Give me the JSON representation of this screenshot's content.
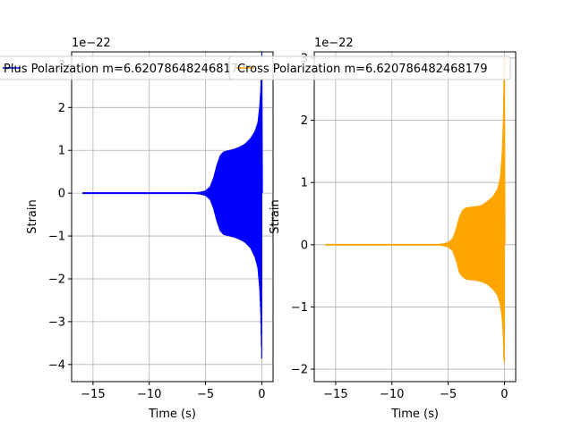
{
  "chart_data": [
    {
      "type": "line",
      "xlabel": "Time (s)",
      "ylabel": "Strain",
      "offset_text": "1e−22",
      "xlim": [
        -16.9,
        1.0
      ],
      "ylim": [
        -4.4,
        3.3
      ],
      "xticks": [
        -15,
        -10,
        -5,
        0
      ],
      "xtick_labels": [
        "−15",
        "−10",
        "−5",
        "0"
      ],
      "yticks": [
        -4,
        -3,
        -2,
        -1,
        0,
        1,
        2,
        3
      ],
      "ytick_labels": [
        "−4",
        "−3",
        "−2",
        "−1",
        "0",
        "1",
        "2",
        "3"
      ],
      "grid": true,
      "legend_position": "top-left",
      "series": [
        {
          "name": "Plus Polarization m=6.620786482468179",
          "color": "#0000ff",
          "envelope": {
            "t": [
              -15.9,
              -6.0,
              -5.5,
              -5.0,
              -4.6,
              -4.3,
              -4.0,
              -3.7,
              -3.4,
              -3.0,
              -2.5,
              -2.0,
              -1.5,
              -1.0,
              -0.6,
              -0.35,
              -0.2,
              -0.1,
              -0.05,
              0.0
            ],
            "upper": [
              0.02,
              0.02,
              0.03,
              0.06,
              0.15,
              0.35,
              0.65,
              0.88,
              0.97,
              1.0,
              1.03,
              1.08,
              1.15,
              1.28,
              1.45,
              1.65,
              2.0,
              2.4,
              2.9,
              3.3
            ],
            "lower": [
              -0.02,
              -0.02,
              -0.03,
              -0.06,
              -0.15,
              -0.35,
              -0.65,
              -0.88,
              -0.97,
              -1.0,
              -1.03,
              -1.08,
              -1.15,
              -1.28,
              -1.5,
              -1.75,
              -2.2,
              -2.8,
              -3.4,
              -4.0
            ]
          }
        },
        {
          "name": "Cross Polarization m=6.620786482468179",
          "color": "#ffa500",
          "envelope": {
            "t": [
              -15.9,
              -6.0,
              -5.5,
              -5.0,
              -4.6,
              -4.3,
              -4.0,
              -3.7,
              -3.4,
              -3.0,
              -2.5,
              -2.0,
              -1.5,
              -1.0,
              -0.6,
              -0.35,
              -0.2,
              -0.1,
              -0.05,
              0.0
            ],
            "upper": [
              0.01,
              0.01,
              0.02,
              0.04,
              0.1,
              0.25,
              0.45,
              0.56,
              0.6,
              0.61,
              0.62,
              0.64,
              0.7,
              0.78,
              0.9,
              1.1,
              1.5,
              2.0,
              2.6,
              3.0
            ],
            "lower": [
              -0.01,
              -0.01,
              -0.02,
              -0.04,
              -0.1,
              -0.25,
              -0.45,
              -0.52,
              -0.56,
              -0.57,
              -0.58,
              -0.6,
              -0.64,
              -0.72,
              -0.82,
              -0.98,
              -1.2,
              -1.5,
              -1.85,
              -1.9
            ]
          }
        }
      ]
    },
    {
      "type": "line",
      "xlabel": "Time (s)",
      "ylabel": "Strain",
      "offset_text": "1e−22",
      "xlim": [
        -16.9,
        1.0
      ],
      "ylim": [
        -2.2,
        3.1
      ],
      "xticks": [
        -15,
        -10,
        -5,
        0
      ],
      "xtick_labels": [
        "−15",
        "−10",
        "−5",
        "0"
      ],
      "yticks": [
        -2,
        -1,
        0,
        1,
        2,
        3
      ],
      "ytick_labels": [
        "−2",
        "−1",
        "0",
        "1",
        "2",
        "3"
      ],
      "grid": true,
      "legend_position": "top-left",
      "series": [
        {
          "name": "Cross Polarization m=6.620786482468179",
          "color": "#ffa500",
          "envelope": {
            "t": [
              -15.9,
              -6.0,
              -5.5,
              -5.0,
              -4.6,
              -4.3,
              -4.0,
              -3.7,
              -3.4,
              -3.0,
              -2.5,
              -2.0,
              -1.5,
              -1.0,
              -0.6,
              -0.35,
              -0.2,
              -0.1,
              -0.05,
              0.0
            ],
            "upper": [
              0.01,
              0.01,
              0.02,
              0.04,
              0.1,
              0.25,
              0.45,
              0.56,
              0.6,
              0.61,
              0.62,
              0.64,
              0.7,
              0.78,
              0.9,
              1.1,
              1.5,
              2.0,
              2.6,
              3.0
            ],
            "lower": [
              -0.01,
              -0.01,
              -0.02,
              -0.04,
              -0.1,
              -0.25,
              -0.45,
              -0.52,
              -0.56,
              -0.57,
              -0.58,
              -0.6,
              -0.64,
              -0.72,
              -0.82,
              -0.98,
              -1.2,
              -1.5,
              -1.85,
              -1.9
            ]
          }
        }
      ]
    }
  ]
}
